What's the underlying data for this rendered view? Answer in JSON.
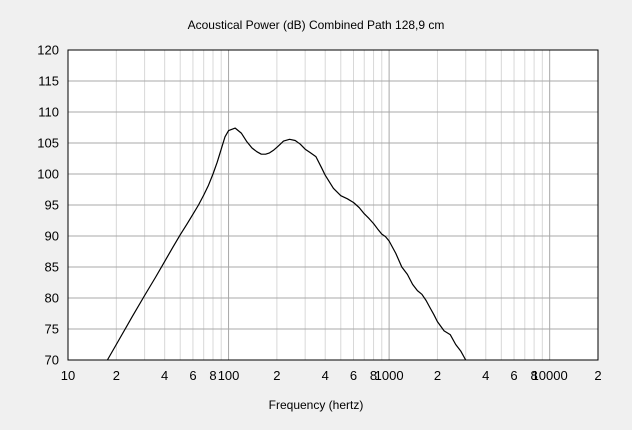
{
  "chart_data": {
    "type": "line",
    "title": "Acoustical Power (dB)    Combined    Path 128,9 cm",
    "xlabel": "Frequency (hertz)",
    "ylabel": "",
    "x_scale": "log",
    "xlim": [
      10,
      20000
    ],
    "ylim": [
      70,
      120
    ],
    "grid": true,
    "legend": "none",
    "y_ticks": [
      70,
      75,
      80,
      85,
      90,
      95,
      100,
      105,
      110,
      115,
      120
    ],
    "y_tick_labels": [
      "70",
      "75",
      "80",
      "85",
      "90",
      "95",
      "100",
      "105",
      "110",
      "115",
      "120"
    ],
    "x_ticks": [
      10,
      20,
      40,
      60,
      80,
      100,
      200,
      400,
      600,
      800,
      1000,
      2000,
      4000,
      6000,
      8000,
      10000,
      20000
    ],
    "x_tick_labels": [
      "10",
      "2",
      "4",
      "6",
      "8",
      "100",
      "2",
      "4",
      "6",
      "8",
      "1000",
      "2",
      "4",
      "6",
      "8",
      "10000",
      "2"
    ],
    "colors": {
      "background": "#f0f0f0",
      "plot_area": "#ffffff",
      "grid_minor": "#d8d8d8",
      "grid_major": "#a8a8a8",
      "line": "#000000"
    },
    "series": [
      {
        "x": [
          17.6,
          20,
          25,
          30,
          35,
          40,
          45,
          50,
          55,
          60,
          65,
          70,
          75,
          80,
          85,
          90,
          95,
          100,
          110,
          120,
          130,
          140,
          150,
          160,
          170,
          180,
          190,
          200,
          210,
          220,
          240,
          260,
          280,
          300,
          320,
          350,
          380,
          400,
          450,
          500,
          550,
          600,
          650,
          700,
          750,
          800,
          850,
          900,
          950,
          1000,
          1100,
          1200,
          1300,
          1400,
          1500,
          1600,
          1700,
          1800,
          1900,
          2000,
          2200,
          2400,
          2600,
          2800,
          3000
        ],
        "y": [
          70,
          72.5,
          76.9,
          80.4,
          83.3,
          85.9,
          88.2,
          90.2,
          91.9,
          93.5,
          95,
          96.6,
          98.2,
          100,
          101.9,
          104,
          106,
          107,
          107.4,
          106.6,
          105.2,
          104.2,
          103.6,
          103.2,
          103.2,
          103.4,
          103.8,
          104.3,
          104.8,
          105.3,
          105.6,
          105.4,
          104.8,
          104,
          103.5,
          102.8,
          101,
          99.8,
          97.7,
          96.5,
          96,
          95.4,
          94.6,
          93.6,
          92.8,
          92,
          91.1,
          90.3,
          89.9,
          89.2,
          87.2,
          85,
          83.8,
          82.2,
          81.2,
          80.6,
          79.6,
          78.4,
          77.3,
          76.2,
          74.7,
          74.1,
          72.5,
          71.4,
          70
        ]
      }
    ]
  }
}
